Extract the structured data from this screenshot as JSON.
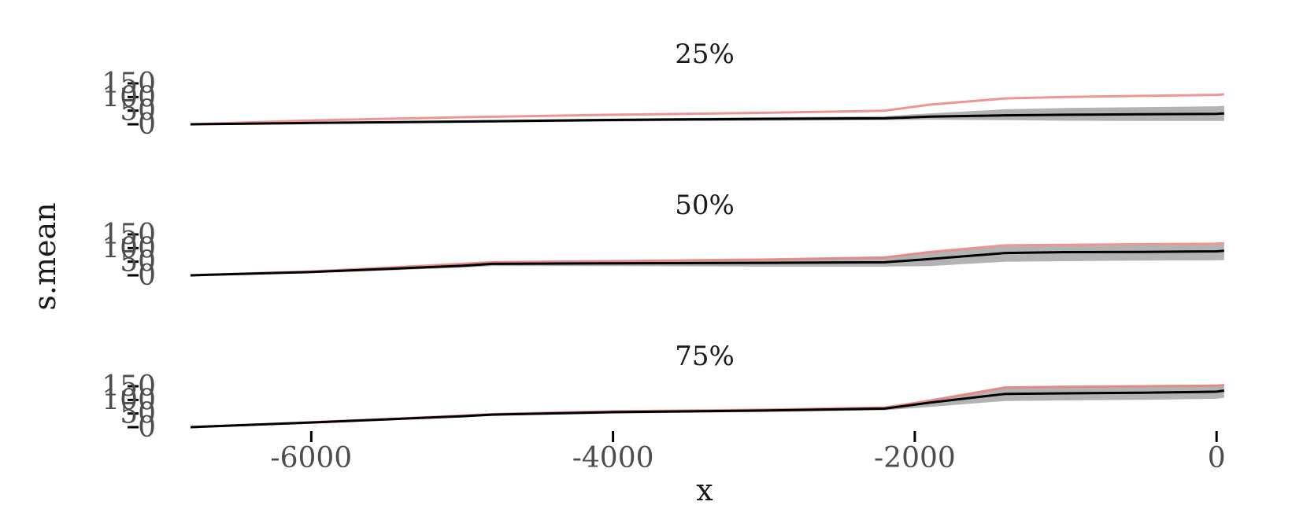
{
  "chart_data": {
    "type": "area",
    "xlabel": "x",
    "ylabel": "s.mean",
    "xlim": [
      -6800,
      25
    ],
    "ylim": [
      0,
      150
    ],
    "x_ticks": [
      -6000,
      -4000,
      -2000,
      0
    ],
    "y_ticks": [
      0,
      50,
      100,
      150
    ],
    "colors": {
      "mean_line": "#000000",
      "band": "#b3b3b3",
      "reference_line": "#f08080"
    },
    "panels": [
      {
        "title": "25%",
        "series": [
          {
            "role": "reference",
            "x": [
              -6800,
              -6000,
              -5000,
              -4000,
              -3000,
              -2200,
              -1900,
              -1400,
              -1000,
              -500,
              0,
              50
            ],
            "y": [
              0,
              14,
              26,
              35,
              42,
              50,
              72,
              95,
              100,
              104,
              108,
              110
            ]
          },
          {
            "role": "mean",
            "x": [
              -6800,
              -6000,
              -5000,
              -4000,
              -3000,
              -2200,
              -1900,
              -1400,
              -1000,
              -500,
              0,
              50
            ],
            "y": [
              0,
              5,
              10,
              16,
              20,
              22,
              28,
              33,
              35,
              37,
              38,
              40
            ]
          },
          {
            "role": "band_upper",
            "x": [
              -6800,
              -6000,
              -5000,
              -4000,
              -3000,
              -2200,
              -1900,
              -1400,
              -1000,
              -500,
              0,
              50
            ],
            "y": [
              1,
              8,
              14,
              21,
              26,
              30,
              40,
              55,
              60,
              63,
              66,
              68
            ]
          },
          {
            "role": "band_lower",
            "x": [
              -6800,
              -6000,
              -5000,
              -4000,
              -3000,
              -2200,
              -1900,
              -1400,
              -1000,
              -500,
              0,
              50
            ],
            "y": [
              0,
              2,
              5,
              10,
              13,
              15,
              17,
              15,
              13,
              12,
              12,
              12
            ]
          }
        ]
      },
      {
        "title": "50%",
        "series": [
          {
            "role": "reference",
            "x": [
              -6800,
              -6000,
              -5000,
              -4800,
              -4000,
              -3000,
              -2200,
              -1900,
              -1400,
              -1000,
              -500,
              0,
              50
            ],
            "y": [
              0,
              14,
              42,
              48,
              52,
              58,
              65,
              86,
              110,
              112,
              114,
              116,
              118
            ]
          },
          {
            "role": "mean",
            "x": [
              -6800,
              -6000,
              -5000,
              -4800,
              -4000,
              -3000,
              -2200,
              -1900,
              -1400,
              -1000,
              -500,
              0,
              50
            ],
            "y": [
              0,
              12,
              35,
              42,
              44,
              46,
              48,
              60,
              82,
              85,
              86,
              88,
              90
            ]
          },
          {
            "role": "band_upper",
            "x": [
              -6800,
              -6000,
              -5000,
              -4800,
              -4000,
              -3000,
              -2200,
              -1900,
              -1400,
              -1000,
              -500,
              0,
              50
            ],
            "y": [
              1,
              16,
              44,
              52,
              56,
              60,
              70,
              85,
              106,
              108,
              110,
              112,
              114
            ]
          },
          {
            "role": "band_lower",
            "x": [
              -6800,
              -6000,
              -5000,
              -4800,
              -4000,
              -3000,
              -2200,
              -1900,
              -1400,
              -1000,
              -500,
              0,
              50
            ],
            "y": [
              0,
              8,
              28,
              34,
              34,
              32,
              32,
              34,
              50,
              52,
              54,
              55,
              56
            ]
          }
        ]
      },
      {
        "title": "75%",
        "series": [
          {
            "role": "reference",
            "x": [
              -6800,
              -6000,
              -5000,
              -4800,
              -4000,
              -3000,
              -2200,
              -1900,
              -1400,
              -1000,
              -500,
              0,
              50
            ],
            "y": [
              0,
              18,
              42,
              48,
              58,
              64,
              72,
              96,
              145,
              148,
              150,
              152,
              154
            ]
          },
          {
            "role": "mean",
            "x": [
              -6800,
              -6000,
              -5000,
              -4800,
              -4000,
              -3000,
              -2200,
              -1900,
              -1400,
              -1000,
              -500,
              0,
              50
            ],
            "y": [
              0,
              17,
              40,
              46,
              55,
              61,
              68,
              90,
              122,
              124,
              126,
              130,
              134
            ]
          },
          {
            "role": "band_upper",
            "x": [
              -6800,
              -6000,
              -5000,
              -4800,
              -4000,
              -3000,
              -2200,
              -1900,
              -1400,
              -1000,
              -500,
              0,
              50
            ],
            "y": [
              1,
              19,
              44,
              50,
              60,
              66,
              74,
              102,
              150,
              152,
              154,
              156,
              158
            ]
          },
          {
            "role": "band_lower",
            "x": [
              -6800,
              -6000,
              -5000,
              -4800,
              -4000,
              -3000,
              -2200,
              -1900,
              -1400,
              -1000,
              -500,
              0,
              50
            ],
            "y": [
              0,
              15,
              36,
              42,
              50,
              56,
              62,
              74,
              96,
              98,
              100,
              104,
              108
            ]
          }
        ]
      }
    ]
  }
}
